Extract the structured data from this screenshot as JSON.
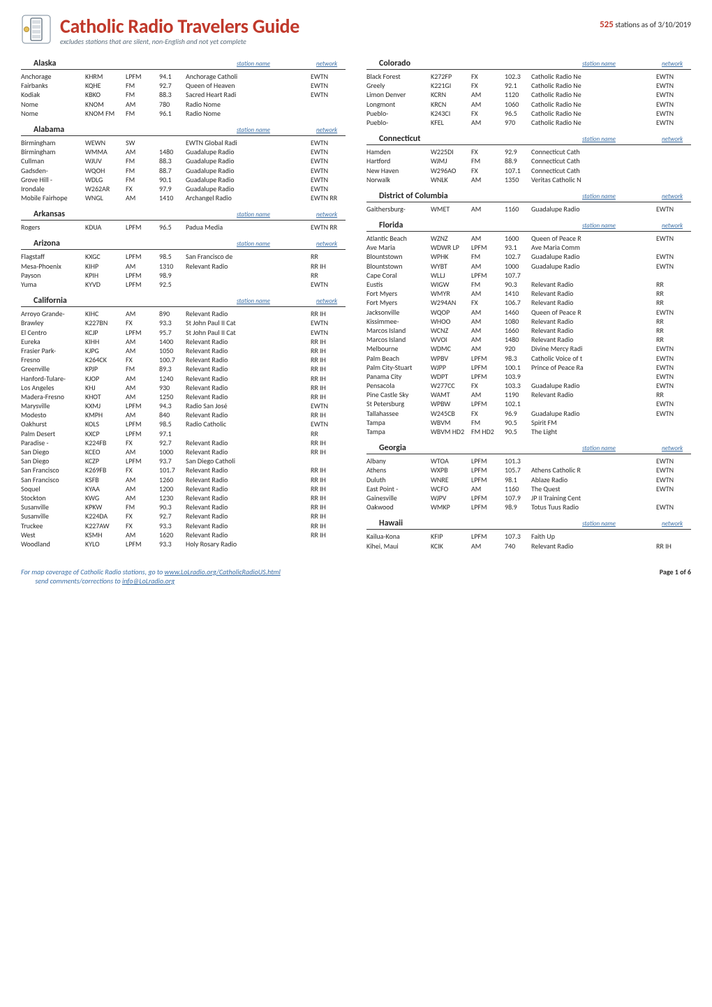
{
  "title": "Catholic Radio Travelers Guide",
  "subtitle": "excludes stations that are silent, non-English and not yet complete",
  "asof_prefix": "stations as of",
  "station_count": "525",
  "asof_date": "3/10/2019",
  "col_headers": {
    "station": "station name",
    "network": "network"
  },
  "footer_line1": "For map coverage of Catholic Radio stations, go to ",
  "footer_link1": "www.LoLradio.org/CatholicRadioUS.html",
  "footer_line2": "send comments/corrections to ",
  "footer_link2": "info@LoLradio.org",
  "footer_page": "Page 1 of 6",
  "column1": [
    {
      "state": "Alaska",
      "rows": [
        [
          "Anchorage",
          "KHRM",
          "LPFM",
          "94.1",
          "Anchorage Catholi",
          "EWTN"
        ],
        [
          "Fairbanks",
          "KQHE",
          "FM",
          "92.7",
          "Queen of Heaven",
          "EWTN"
        ],
        [
          "Kodiak",
          "KBKO",
          "FM",
          "88.3",
          "Sacred Heart Radi",
          "EWTN"
        ],
        [
          "Nome",
          "KNOM",
          "AM",
          "780",
          "Radio Nome",
          ""
        ],
        [
          "Nome",
          "KNOM FM",
          "FM",
          "96.1",
          "Radio Nome",
          ""
        ]
      ]
    },
    {
      "state": "Alabama",
      "rows": [
        [
          "Birmingham",
          "WEWN",
          "SW",
          "",
          "EWTN Global Radi",
          "EWTN"
        ],
        [
          "Birmingham",
          "WMMA",
          "AM",
          "1480",
          "Guadalupe Radio",
          "EWTN"
        ],
        [
          "Cullman",
          "WJUV",
          "FM",
          "88.3",
          "Guadalupe Radio",
          "EWTN"
        ],
        [
          "Gadsden-",
          "WQOH",
          "FM",
          "88.7",
          "Guadalupe Radio",
          "EWTN"
        ],
        [
          "Grove Hill -",
          "WDLG",
          "FM",
          "90.1",
          "Guadalupe Radio",
          "EWTN"
        ],
        [
          "Irondale",
          "W262AR",
          "FX",
          "97.9",
          "Guadalupe Radio",
          "EWTN"
        ],
        [
          "Mobile Fairhope",
          "WNGL",
          "AM",
          "1410",
          "Archangel Radio",
          "EWTN RR"
        ]
      ]
    },
    {
      "state": "Arkansas",
      "rows": [
        [
          "Rogers",
          "KDUA",
          "LPFM",
          "96.5",
          "Padua Media",
          "EWTN RR"
        ]
      ]
    },
    {
      "state": "Arizona",
      "rows": [
        [
          "Flagstaff",
          "KXGC",
          "LPFM",
          "98.5",
          "San Francisco de",
          "RR"
        ],
        [
          "Mesa-Phoenix",
          "KIHP",
          "AM",
          "1310",
          "Relevant Radio",
          "RR IH"
        ],
        [
          "Payson",
          "KPIH",
          "LPFM",
          "98.9",
          "",
          "RR"
        ],
        [
          "Yuma",
          "KYVD",
          "LPFM",
          "92.5",
          "",
          "EWTN"
        ]
      ]
    },
    {
      "state": "California",
      "rows": [
        [
          "Arroyo Grande-",
          "KIHC",
          "AM",
          "890",
          "Relevant Radio",
          "RR IH"
        ],
        [
          "Brawley",
          "K227BN",
          "FX",
          "93.3",
          "St John Paul II Cat",
          "EWTN"
        ],
        [
          "El Centro",
          "KCJP",
          "LPFM",
          "95.7",
          "St John Paul II Cat",
          "EWTN"
        ],
        [
          "Eureka",
          "KIHH",
          "AM",
          "1400",
          "Relevant Radio",
          "RR IH"
        ],
        [
          "Frasier Park-",
          "KJPG",
          "AM",
          "1050",
          "Relevant Radio",
          "RR IH"
        ],
        [
          "Fresno",
          "K264CK",
          "FX",
          "100.7",
          "Relevant Radio",
          "RR IH"
        ],
        [
          "Greenville",
          "KPJP",
          "FM",
          "89.3",
          "Relevant Radio",
          "RR IH"
        ],
        [
          "Hanford-Tulare-",
          "KJOP",
          "AM",
          "1240",
          "Relevant Radio",
          "RR IH"
        ],
        [
          "Los Angeles",
          "KHJ",
          "AM",
          "930",
          "Relevant Radio",
          "RR IH"
        ],
        [
          "Madera-Fresno",
          "KHOT",
          "AM",
          "1250",
          "Relevant Radio",
          "RR IH"
        ],
        [
          "Marysville",
          "KXMJ",
          "LPFM",
          "94.3",
          "Radio San José",
          "EWTN"
        ],
        [
          "Modesto",
          "KMPH",
          "AM",
          "840",
          "Relevant Radio",
          "RR IH"
        ],
        [
          "Oakhurst",
          "KOLS",
          "LPFM",
          "98.5",
          "Radio Catholic",
          "EWTN"
        ],
        [
          "Palm Desert",
          "KXCP",
          "LPFM",
          "97.1",
          "",
          "RR"
        ],
        [
          "Paradise -",
          "K224FB",
          "FX",
          "92.7",
          "Relevant Radio",
          "RR IH"
        ],
        [
          "San Diego",
          "KCEO",
          "AM",
          "1000",
          "Relevant Radio",
          "RR IH"
        ],
        [
          "San Diego",
          "KCZP",
          "LPFM",
          "93.7",
          "San Diego Catholi",
          ""
        ],
        [
          "San Francisco",
          "K269FB",
          "FX",
          "101.7",
          "Relevant Radio",
          "RR IH"
        ],
        [
          "San Francisco",
          "KSFB",
          "AM",
          "1260",
          "Relevant Radio",
          "RR IH"
        ],
        [
          "Soquel",
          "KYAA",
          "AM",
          "1200",
          "Relevant Radio",
          "RR IH"
        ],
        [
          "Stockton",
          "KWG",
          "AM",
          "1230",
          "Relevant Radio",
          "RR IH"
        ],
        [
          "Susanville",
          "KPKW",
          "FM",
          "90.3",
          "Relevant Radio",
          "RR IH"
        ],
        [
          "Susanville",
          "K224DA",
          "FX",
          "92.7",
          "Relevant Radio",
          "RR IH"
        ],
        [
          "Truckee",
          "K227AW",
          "FX",
          "93.3",
          "Relevant Radio",
          "RR IH"
        ],
        [
          "West",
          "KSMH",
          "AM",
          "1620",
          "Relevant Radio",
          "RR IH"
        ],
        [
          "Woodland",
          "KYLO",
          "LPFM",
          "93.3",
          "Holy Rosary Radio",
          ""
        ]
      ]
    }
  ],
  "column2": [
    {
      "state": "Colorado",
      "rows": [
        [
          "Black Forest",
          "K272FP",
          "FX",
          "102.3",
          "Catholic Radio Ne",
          "EWTN"
        ],
        [
          "Greely",
          "K221GI",
          "FX",
          "92.1",
          "Catholic Radio Ne",
          "EWTN"
        ],
        [
          "Limon Denver",
          "KCRN",
          "AM",
          "1120",
          "Catholic Radio Ne",
          "EWTN"
        ],
        [
          "Longmont",
          "KRCN",
          "AM",
          "1060",
          "Catholic Radio Ne",
          "EWTN"
        ],
        [
          "Pueblo-",
          "K243CI",
          "FX",
          "96.5",
          "Catholic Radio Ne",
          "EWTN"
        ],
        [
          "Pueblo-",
          "KFEL",
          "AM",
          "970",
          "Catholic Radio Ne",
          "EWTN"
        ]
      ]
    },
    {
      "state": "Connecticut",
      "rows": [
        [
          "Hamden",
          "W225DI",
          "FX",
          "92.9",
          "Connecticut Cath",
          ""
        ],
        [
          "Hartford",
          "WJMJ",
          "FM",
          "88.9",
          "Connecticut Cath",
          ""
        ],
        [
          "New Haven",
          "W296AO",
          "FX",
          "107.1",
          "Connecticut Cath",
          ""
        ],
        [
          "Norwalk",
          "WNLK",
          "AM",
          "1350",
          "Veritas Catholic N",
          ""
        ]
      ]
    },
    {
      "state": "District of Columbia",
      "rows": [
        [
          "Gaithersburg-",
          "WMET",
          "AM",
          "1160",
          "Guadalupe Radio",
          "EWTN"
        ]
      ]
    },
    {
      "state": "Florida",
      "rows": [
        [
          "Atlantic Beach",
          "WZNZ",
          "AM",
          "1600",
          "Queen of Peace R",
          "EWTN"
        ],
        [
          "Ave Maria",
          "WDWR LP",
          "LPFM",
          "93.1",
          "Ave Maria Comm",
          ""
        ],
        [
          "Blountstown",
          "WPHK",
          "FM",
          "102.7",
          "Guadalupe Radio",
          "EWTN"
        ],
        [
          "Blountstown",
          "WYBT",
          "AM",
          "1000",
          "Guadalupe Radio",
          "EWTN"
        ],
        [
          "Cape Coral",
          "WLLJ",
          "LPFM",
          "107.7",
          "",
          ""
        ],
        [
          "Eustis",
          "WIGW",
          "FM",
          "90.3",
          "Relevant Radio",
          "RR"
        ],
        [
          "Fort Myers",
          "WMYR",
          "AM",
          "1410",
          "Relevant Radio",
          "RR"
        ],
        [
          "Fort Myers",
          "W294AN",
          "FX",
          "106.7",
          "Relevant Radio",
          "RR"
        ],
        [
          "Jacksonville",
          "WQOP",
          "AM",
          "1460",
          "Queen of Peace R",
          "EWTN"
        ],
        [
          "Kissimmee-",
          "WHOO",
          "AM",
          "1080",
          "Relevant Radio",
          "RR"
        ],
        [
          "Marcos Island",
          "WCNZ",
          "AM",
          "1660",
          "Relevant Radio",
          "RR"
        ],
        [
          "Marcos Island",
          "WVOI",
          "AM",
          "1480",
          "Relevant Radio",
          "RR"
        ],
        [
          "Melbourne",
          "WDMC",
          "AM",
          "920",
          "Divine Mercy Radi",
          "EWTN"
        ],
        [
          "Palm Beach",
          "WPBV",
          "LPFM",
          "98.3",
          "Catholic Voice of t",
          "EWTN"
        ],
        [
          "Palm City-Stuart",
          "WJPP",
          "LPFM",
          "100.1",
          "Prince of Peace Ra",
          "EWTN"
        ],
        [
          "Panama City",
          "WDPT",
          "LPFM",
          "103.9",
          "",
          "EWTN"
        ],
        [
          "Pensacola",
          "W277CC",
          "FX",
          "103.3",
          "Guadalupe Radio",
          "EWTN"
        ],
        [
          "Pine Castle Sky",
          "WAMT",
          "AM",
          "1190",
          "Relevant Radio",
          "RR"
        ],
        [
          "St Petersburg",
          "WPBW",
          "LPFM",
          "102.1",
          "",
          "EWTN"
        ],
        [
          "Tallahassee",
          "W245CB",
          "FX",
          "96.9",
          "Guadalupe Radio",
          "EWTN"
        ],
        [
          "Tampa",
          "WBVM",
          "FM",
          "90.5",
          "Spirit FM",
          ""
        ],
        [
          "Tampa",
          "WBVM HD2",
          "FM HD2",
          "90.5",
          "The Light",
          ""
        ]
      ]
    },
    {
      "state": "Georgia",
      "rows": [
        [
          "Albany",
          "WTOA",
          "LPFM",
          "101.3",
          "",
          "EWTN"
        ],
        [
          "Athens",
          "WXPB",
          "LPFM",
          "105.7",
          "Athens Catholic R",
          "EWTN"
        ],
        [
          "Duluth",
          "WNRE",
          "LPFM",
          "98.1",
          "Ablaze Radio",
          "EWTN"
        ],
        [
          "East Point -",
          "WCFO",
          "AM",
          "1160",
          "The Quest",
          "EWTN"
        ],
        [
          "Gainesville",
          "WJPV",
          "LPFM",
          "107.9",
          "JP II Training Cent",
          ""
        ],
        [
          "Oakwood",
          "WMKP",
          "LPFM",
          "98.9",
          "Totus Tuus Radio",
          "EWTN"
        ]
      ]
    },
    {
      "state": "Hawaii",
      "rows": [
        [
          "Kailua-Kona",
          "KFIP",
          "LPFM",
          "107.3",
          "Faith Up",
          ""
        ],
        [
          "Kihei, Maui",
          "KCIK",
          "AM",
          "740",
          "Relevant Radio",
          "RR IH"
        ]
      ]
    }
  ]
}
